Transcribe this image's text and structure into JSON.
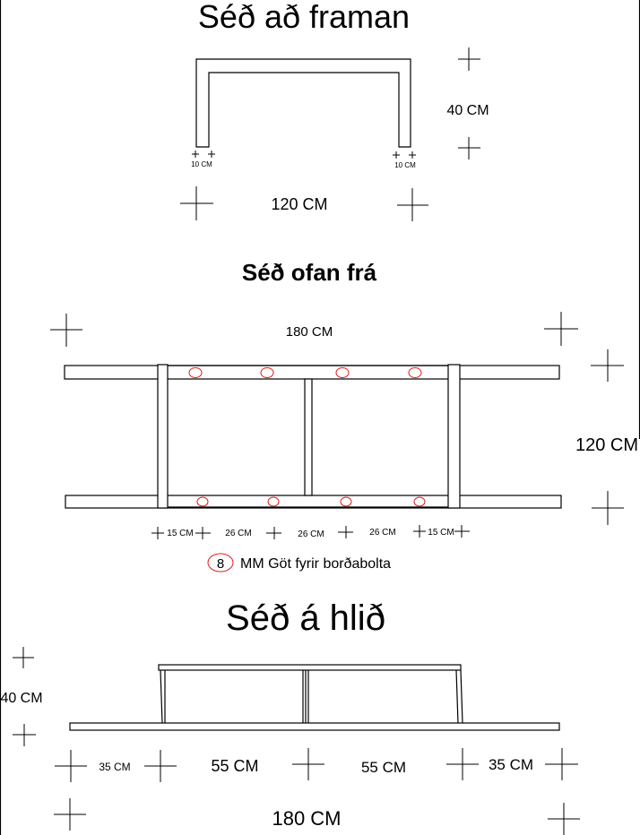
{
  "front": {
    "title": "Séð að framan",
    "height_label": "40 CM",
    "leg_label_left": "10 CM",
    "leg_label_right": "10 CM",
    "width_label": "120 CM"
  },
  "top": {
    "title": "Séð ofan frá",
    "length_label": "180 CM",
    "depth_label": "120 CM",
    "spacings": [
      "15 CM",
      "26 CM",
      "26 CM",
      "26 CM",
      "15 CM"
    ],
    "legend_number": "8",
    "legend_text": "MM Göt fyrir borðabolta"
  },
  "side": {
    "title": "Séð á hlið",
    "height_label": "40 CM",
    "sections": [
      "35 CM",
      "55 CM",
      "55 CM",
      "35 CM"
    ],
    "length_label": "180 CM"
  },
  "colors": {
    "line": "#000000",
    "hole": "#e21b1b"
  }
}
